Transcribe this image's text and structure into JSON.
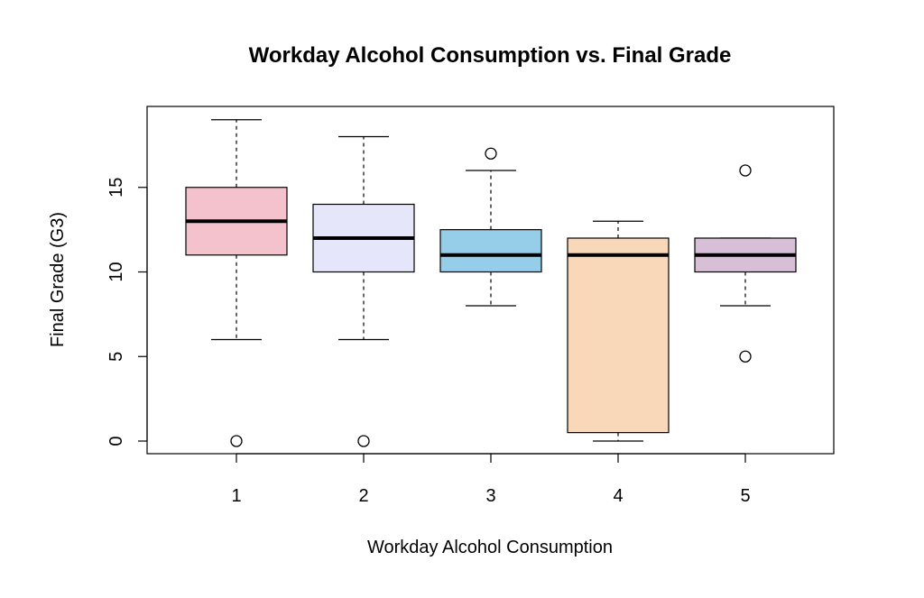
{
  "chart_data": {
    "type": "boxplot",
    "title": "Workday Alcohol Consumption vs. Final Grade",
    "xlabel": "Workday Alcohol Consumption",
    "ylabel": "Final Grade (G3)",
    "categories": [
      "1",
      "2",
      "3",
      "4",
      "5"
    ],
    "y_ticks": [
      "0",
      "5",
      "10",
      "15"
    ],
    "ylim": [
      -0.8,
      19.5
    ],
    "grid": false,
    "legend": "none",
    "boxes": [
      {
        "category": "1",
        "whisker_low": 6,
        "q1": 11,
        "median": 13,
        "q3": 15,
        "whisker_high": 19,
        "outliers": [
          0
        ],
        "color": "#F4C2CC"
      },
      {
        "category": "2",
        "whisker_low": 6,
        "q1": 10,
        "median": 12,
        "q3": 14,
        "whisker_high": 18,
        "outliers": [
          0
        ],
        "color": "#E6E6FA"
      },
      {
        "category": "3",
        "whisker_low": 8,
        "q1": 10,
        "median": 11,
        "q3": 12.5,
        "whisker_high": 16,
        "outliers": [
          17
        ],
        "color": "#96CDE9"
      },
      {
        "category": "4",
        "whisker_low": 0,
        "q1": 0.5,
        "median": 11,
        "q3": 12,
        "whisker_high": 13,
        "outliers": [],
        "color": "#F8D8B8"
      },
      {
        "category": "5",
        "whisker_low": 8,
        "q1": 10,
        "median": 11,
        "q3": 12,
        "whisker_high": 12,
        "outliers": [
          5,
          16
        ],
        "color": "#D8BFD8"
      }
    ]
  }
}
